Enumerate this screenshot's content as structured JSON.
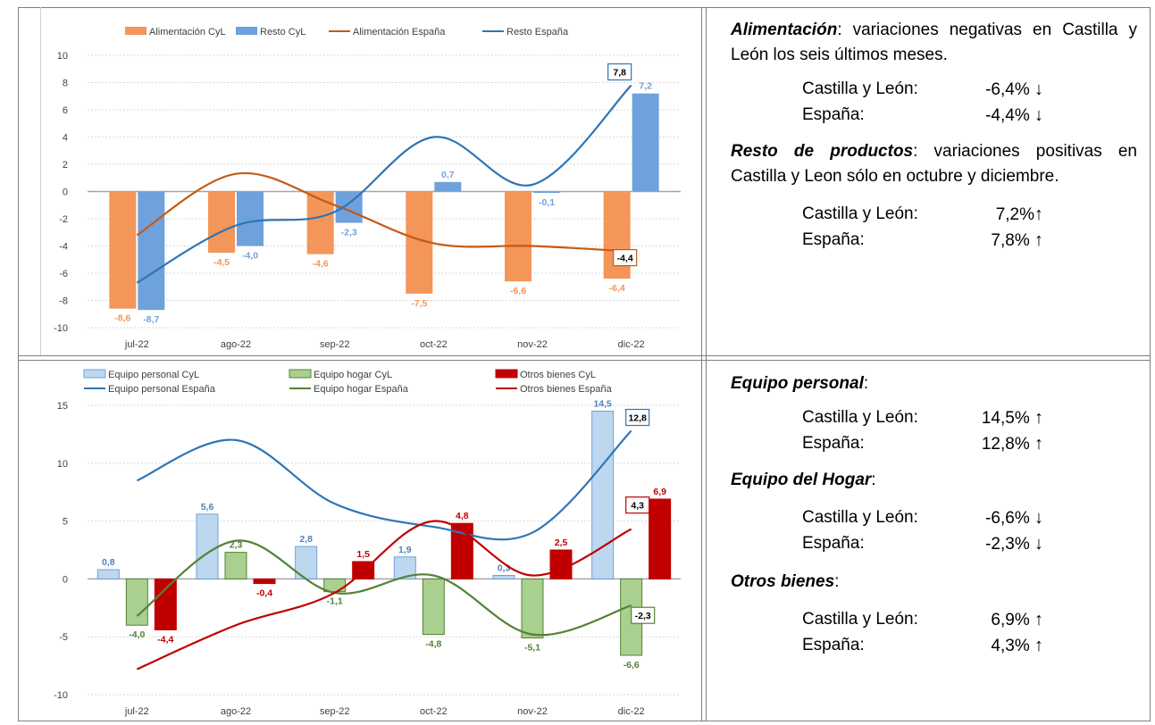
{
  "chart_data": [
    {
      "type": "bar",
      "categories": [
        "jul-22",
        "ago-22",
        "sep-22",
        "oct-22",
        "nov-22",
        "dic-22"
      ],
      "ylim": [
        -10,
        10
      ],
      "yticks": [
        -10,
        -8,
        -6,
        -4,
        -2,
        0,
        2,
        4,
        6,
        8,
        10
      ],
      "grid": true,
      "legend_position": "top",
      "series": [
        {
          "name": "Alimentación CyL",
          "kind": "bar",
          "color": "#f4955a",
          "values": [
            -8.6,
            -4.5,
            -4.6,
            -7.5,
            -6.6,
            -6.4
          ],
          "labels": [
            "-8,6",
            "-4,5",
            "-4,6",
            "-7,5",
            "-6,6",
            "-6,4"
          ]
        },
        {
          "name": "Resto CyL",
          "kind": "bar",
          "color": "#6fa1dc",
          "values": [
            -8.7,
            -4.0,
            -2.3,
            0.7,
            -0.1,
            7.2
          ],
          "labels": [
            "-8,7",
            "-4,0",
            "-2,3",
            "0,7",
            "-0,1",
            "7,2"
          ]
        },
        {
          "name": "Alimentación España",
          "kind": "line",
          "color": "#c55a11",
          "values": [
            -3.2,
            1.3,
            -1.0,
            -3.8,
            -4.0,
            -4.4
          ],
          "end_label": "-4,4"
        },
        {
          "name": "Resto España",
          "kind": "line",
          "color": "#2e75b6",
          "values": [
            -6.7,
            -2.5,
            -1.5,
            4.0,
            0.5,
            7.8
          ],
          "end_label": "7,8"
        }
      ]
    },
    {
      "type": "bar",
      "categories": [
        "jul-22",
        "ago-22",
        "sep-22",
        "oct-22",
        "nov-22",
        "dic-22"
      ],
      "ylim": [
        -10,
        15
      ],
      "yticks": [
        -10,
        -5,
        0,
        5,
        10,
        15
      ],
      "grid": true,
      "legend_position": "top",
      "series": [
        {
          "name": "Equipo personal CyL",
          "kind": "bar",
          "color": "#bdd7ee",
          "stroke": "#6fa1dc",
          "label_color": "#4f81bd",
          "values": [
            0.8,
            5.6,
            2.8,
            1.9,
            0.3,
            14.5
          ],
          "labels": [
            "0,8",
            "5,6",
            "2,8",
            "1,9",
            "0,3",
            "14,5"
          ]
        },
        {
          "name": "Equipo hogar CyL",
          "kind": "bar",
          "color": "#a9d08e",
          "stroke": "#548235",
          "label_color": "#548235",
          "values": [
            -4.0,
            2.3,
            -1.1,
            -4.8,
            -5.1,
            -6.6
          ],
          "labels": [
            "-4,0",
            "2,3",
            "-1,1",
            "-4,8",
            "-5,1",
            "-6,6"
          ]
        },
        {
          "name": "Otros bienes CyL",
          "kind": "bar",
          "color": "#c00000",
          "stroke": "#c00000",
          "label_color": "#c00000",
          "values": [
            -4.4,
            -0.4,
            1.5,
            4.8,
            2.5,
            6.9
          ],
          "labels": [
            "-4,4",
            "-0,4",
            "1,5",
            "4,8",
            "2,5",
            "6,9"
          ]
        },
        {
          "name": "Equipo personal España",
          "kind": "line",
          "color": "#2e75b6",
          "values": [
            8.5,
            12.0,
            6.5,
            4.5,
            4.0,
            12.8
          ],
          "end_label": "12,8"
        },
        {
          "name": "Equipo hogar España",
          "kind": "line",
          "color": "#548235",
          "values": [
            -3.2,
            3.3,
            -1.2,
            0.3,
            -4.8,
            -2.3
          ],
          "end_label": "-2,3"
        },
        {
          "name": "Otros bienes España",
          "kind": "line",
          "color": "#c00000",
          "values": [
            -7.8,
            -4.0,
            -1.2,
            5.0,
            0.3,
            4.3
          ],
          "end_label": "4,3"
        }
      ]
    }
  ],
  "panel1": {
    "p1_title": "Alimentación",
    "p1_text": ": variaciones negativas en Castilla y León los seis últimos meses.",
    "p1_rows": [
      {
        "label": "Castilla y León:",
        "value": "-6,4%",
        "arrow": "↓"
      },
      {
        "label": "España:",
        "value": "-4,4%",
        "arrow": "↓"
      }
    ],
    "p2_title": "Resto de productos",
    "p2_text": ": variaciones positivas en Castilla y Leon sólo en octubre y diciembre.",
    "p2_rows": [
      {
        "label": "Castilla y León:",
        "value": "7,2%",
        "arrow": "↑"
      },
      {
        "label": "España:",
        "value": "7,8%",
        "arrow": "↑"
      }
    ]
  },
  "panel2": {
    "s1_title": "Equipo personal",
    "s1_suffix": ":",
    "s1_rows": [
      {
        "label": "Castilla y León:",
        "value": "14,5%",
        "arrow": "↑"
      },
      {
        "label": "España:",
        "value": "12,8%",
        "arrow": "↑"
      }
    ],
    "s2_title": "Equipo del Hogar",
    "s2_suffix": ":",
    "s2_rows": [
      {
        "label": "Castilla y León:",
        "value": "-6,6%",
        "arrow": "↓"
      },
      {
        "label": "España:",
        "value": "-2,3%",
        "arrow": "↓"
      }
    ],
    "s3_title": "Otros bienes",
    "s3_suffix": ":",
    "s3_rows": [
      {
        "label": "Castilla y León:",
        "value": "6,9%",
        "arrow": "↑"
      },
      {
        "label": "España:",
        "value": "4,3%",
        "arrow": "↑"
      }
    ]
  }
}
